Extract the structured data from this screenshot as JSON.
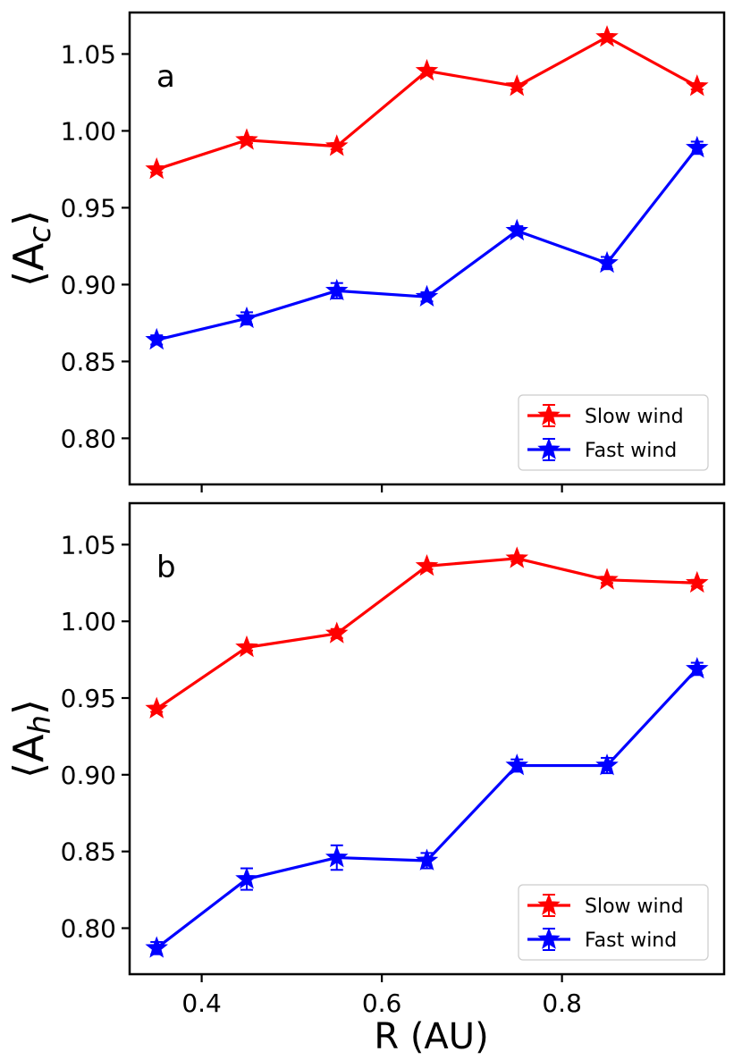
{
  "chart_data": [
    {
      "type": "line",
      "panel_label": "a",
      "ylabel": "⟨A_c⟩",
      "ylabel_main": "⟨A",
      "ylabel_sub": "c",
      "ylabel_close": "⟩",
      "xlabel": "",
      "xlim": [
        0.32,
        0.98
      ],
      "ylim": [
        0.77,
        1.077
      ],
      "xticks": [
        0.4,
        0.6,
        0.8
      ],
      "yticks": [
        0.8,
        0.85,
        0.9,
        0.95,
        1.0,
        1.05
      ],
      "ytick_labels": [
        "0.80",
        "0.85",
        "0.90",
        "0.95",
        "1.00",
        "1.05"
      ],
      "legend_position": "lower-right",
      "x": [
        0.35,
        0.45,
        0.55,
        0.65,
        0.75,
        0.85,
        0.95
      ],
      "series": [
        {
          "name": "Slow wind",
          "color": "#ff0000",
          "values": [
            0.975,
            0.994,
            0.99,
            1.039,
            1.029,
            1.061,
            1.029
          ],
          "errors": [
            0.002,
            0.002,
            0.002,
            0.002,
            0.002,
            0.002,
            0.002
          ]
        },
        {
          "name": "Fast wind",
          "color": "#0000ff",
          "values": [
            0.864,
            0.878,
            0.896,
            0.892,
            0.935,
            0.914,
            0.989
          ],
          "errors": [
            0.003,
            0.004,
            0.005,
            0.003,
            0.003,
            0.004,
            0.004
          ]
        }
      ]
    },
    {
      "type": "line",
      "panel_label": "b",
      "ylabel": "⟨A_h⟩",
      "ylabel_main": "⟨A",
      "ylabel_sub": "h",
      "ylabel_close": "⟩",
      "xlabel": "R (AU)",
      "xlim": [
        0.32,
        0.98
      ],
      "ylim": [
        0.77,
        1.077
      ],
      "xticks": [
        0.4,
        0.6,
        0.8
      ],
      "xtick_labels": [
        "0.4",
        "0.6",
        "0.8"
      ],
      "yticks": [
        0.8,
        0.85,
        0.9,
        0.95,
        1.0,
        1.05
      ],
      "ytick_labels": [
        "0.80",
        "0.85",
        "0.90",
        "0.95",
        "1.00",
        "1.05"
      ],
      "legend_position": "lower-right",
      "x": [
        0.35,
        0.45,
        0.55,
        0.65,
        0.75,
        0.85,
        0.95
      ],
      "series": [
        {
          "name": "Slow wind",
          "color": "#ff0000",
          "values": [
            0.943,
            0.983,
            0.992,
            1.036,
            1.041,
            1.027,
            1.025
          ],
          "errors": [
            0.002,
            0.002,
            0.003,
            0.002,
            0.002,
            0.002,
            0.002
          ]
        },
        {
          "name": "Fast wind",
          "color": "#0000ff",
          "values": [
            0.787,
            0.832,
            0.846,
            0.844,
            0.906,
            0.906,
            0.969
          ],
          "errors": [
            0.004,
            0.007,
            0.008,
            0.005,
            0.004,
            0.005,
            0.004
          ]
        }
      ]
    }
  ]
}
